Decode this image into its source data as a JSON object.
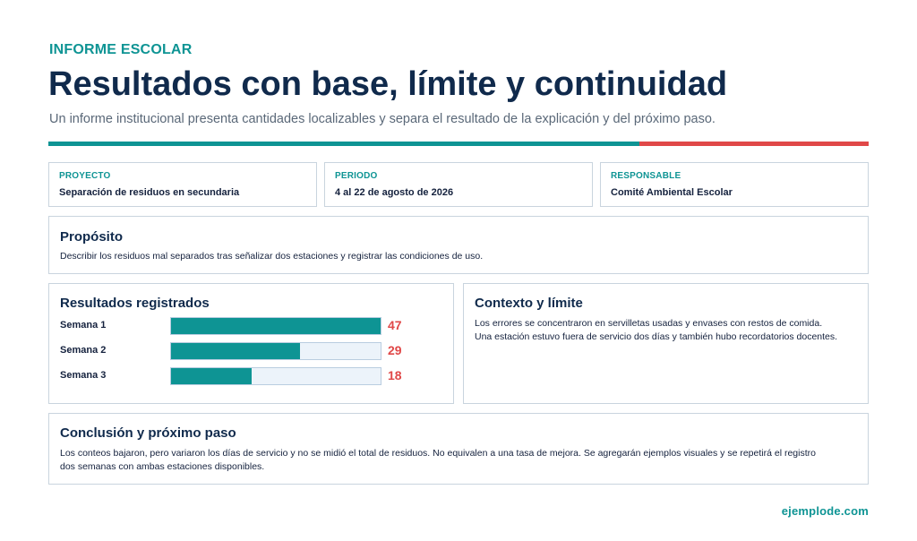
{
  "colors": {
    "accent_teal": "#0e9494",
    "accent_red": "#e04848",
    "navy": "#102a4c"
  },
  "header": {
    "kicker": "INFORME ESCOLAR",
    "title": "Resultados con base, límite y continuidad",
    "subtitle": "Un informe institucional presenta cantidades localizables y separa el resultado de la explicación y del próximo paso."
  },
  "meta": [
    {
      "label": "PROYECTO",
      "value": "Separación de residuos en secundaria"
    },
    {
      "label": "PERIODO",
      "value": "4 al 22 de agosto de 2026"
    },
    {
      "label": "RESPONSABLE",
      "value": "Comité Ambiental Escolar"
    }
  ],
  "purpose": {
    "title": "Propósito",
    "text": "Describir los residuos mal separados tras señalizar dos estaciones y registrar las condiciones de uso."
  },
  "results": {
    "title": "Resultados registrados",
    "max": 47
  },
  "chart_data": {
    "type": "bar",
    "orientation": "horizontal",
    "categories": [
      "Semana 1",
      "Semana 2",
      "Semana 3"
    ],
    "values": [
      47,
      29,
      18
    ],
    "title": "Resultados registrados",
    "xlabel": "",
    "ylabel": "",
    "xlim": [
      0,
      47
    ],
    "grid": false,
    "legend": "none"
  },
  "context": {
    "title": "Contexto y límite",
    "lines": [
      "Los errores se concentraron en servilletas usadas y envases con restos de comida.",
      "Una estación estuvo fuera de servicio dos días y también hubo recordatorios docentes."
    ]
  },
  "conclusion": {
    "title": "Conclusión y próximo paso",
    "lines": [
      "Los conteos bajaron, pero variaron los días de servicio y no se midió el total de residuos. No equivalen a una tasa de mejora. Se agregarán ejemplos visuales y se repetirá el registro",
      "dos semanas con ambas estaciones disponibles."
    ]
  },
  "footer": {
    "brand": "ejemplode.com"
  }
}
